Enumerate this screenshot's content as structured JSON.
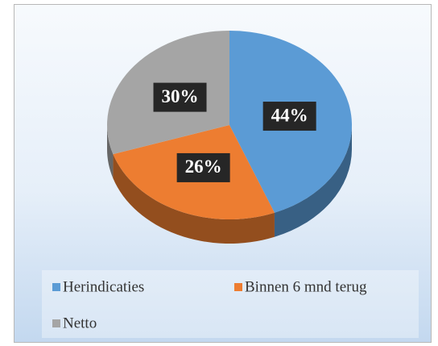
{
  "chart_data": {
    "type": "pie",
    "categories": [
      "Herindicaties",
      "Binnen 6 mnd terug",
      "Netto"
    ],
    "values": [
      44,
      26,
      30
    ],
    "value_labels": [
      "44%",
      "26%",
      "30%"
    ],
    "colors": [
      "#5b9bd5",
      "#ed7d31",
      "#a5a5a5"
    ],
    "legend": "bottom"
  }
}
